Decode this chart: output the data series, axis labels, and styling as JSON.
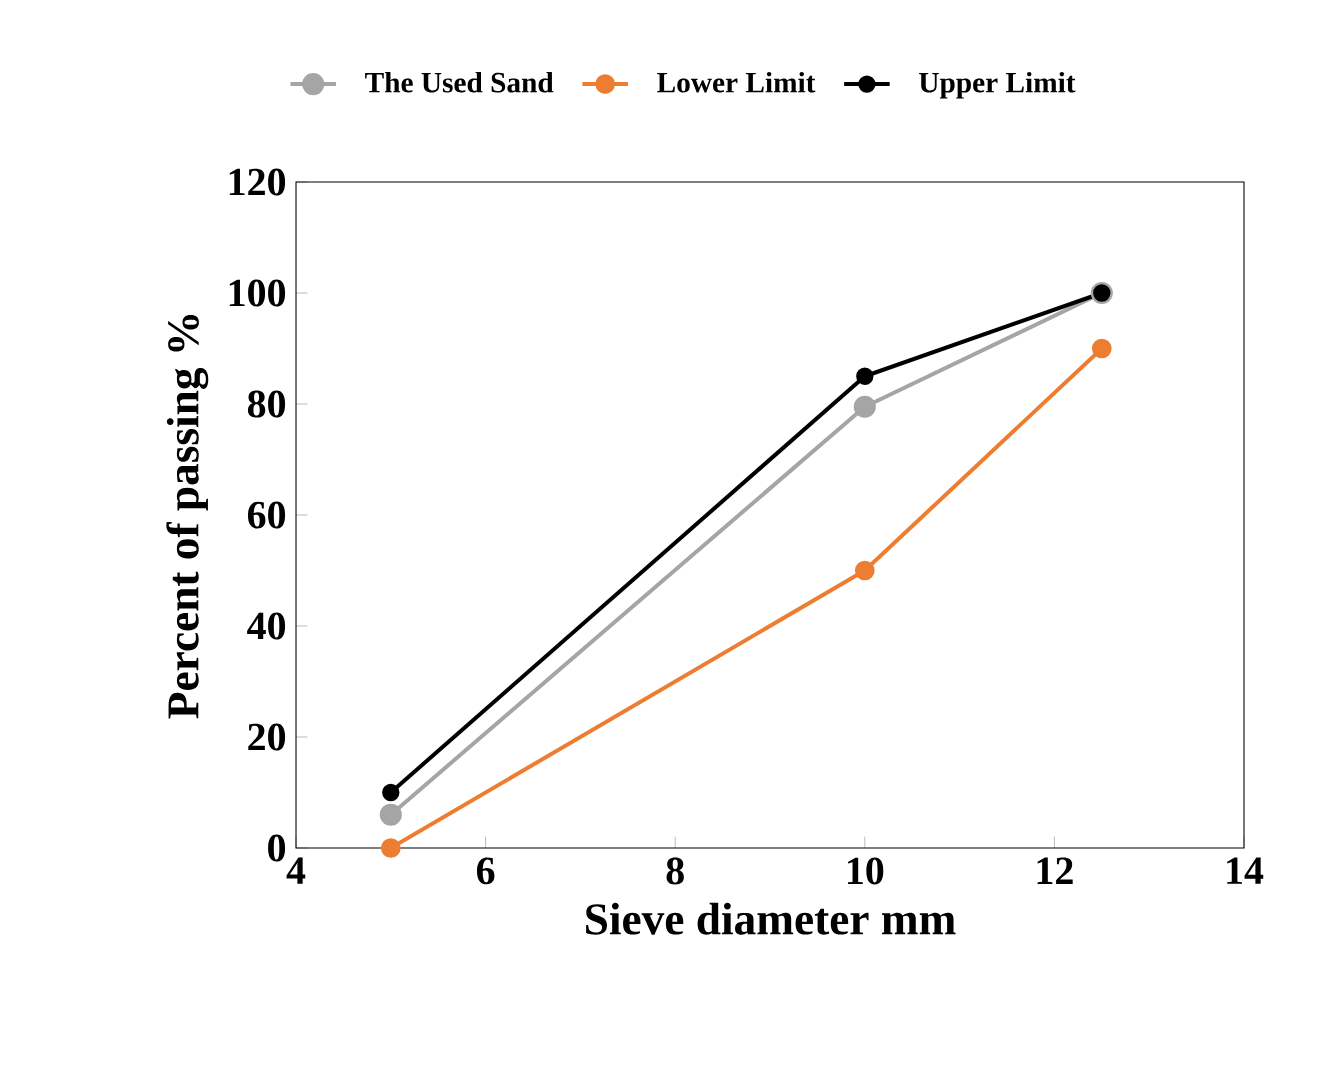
{
  "chart_data": {
    "type": "line",
    "xlabel": "Sieve diameter mm",
    "ylabel": "Percent of passing %",
    "x": [
      5,
      10,
      12.5
    ],
    "series": [
      {
        "name": "The Used Sand",
        "color": "#a5a5a5",
        "values": [
          6,
          79.5,
          100
        ]
      },
      {
        "name": "Lower Limit",
        "color": "#ed7d31",
        "values": [
          0,
          50,
          90
        ]
      },
      {
        "name": "Upper Limit",
        "color": "#000000",
        "values": [
          10,
          85,
          100
        ]
      }
    ],
    "xlim": [
      4,
      14
    ],
    "xticks": [
      4,
      6,
      8,
      10,
      12,
      14
    ],
    "ylim": [
      0,
      120
    ],
    "yticks": [
      0,
      20,
      40,
      60,
      80,
      100,
      120
    ],
    "grid": false,
    "legend": "top",
    "marker": "circle",
    "line_style": "solid"
  }
}
